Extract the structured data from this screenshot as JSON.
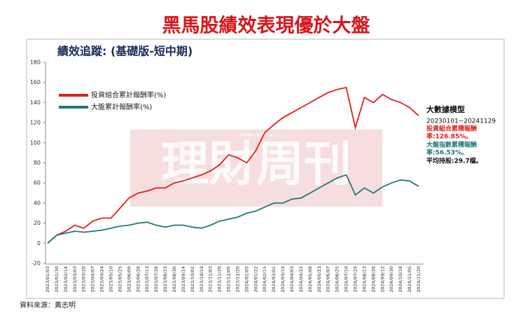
{
  "chart_data": {
    "type": "line",
    "title": "黑馬股績效表現優於大盤",
    "subtitle": "績效追蹤: (基礎版-短中期)",
    "watermark": "理財周刊",
    "watermark_sub": "MONEY WEEKLY",
    "categories": [
      "2023/01/03",
      "2023/01/30",
      "2023/02/14",
      "2023/03/03",
      "2023/03/20",
      "2023/04/07",
      "2023/04/24",
      "2023/05/10",
      "2023/05/25",
      "2023/06/09",
      "2023/06/28",
      "2023/07/13",
      "2023/07/28",
      "2023/08/15",
      "2023/08/30",
      "2023/09/14",
      "2023/10/02",
      "2023/10/19",
      "2023/11/03",
      "2023/11/20",
      "2023/12/05",
      "2023/12/20",
      "2024/01/05",
      "2024/01/22",
      "2024/02/15",
      "2024/03/01",
      "2024/03/19",
      "2024/04/03",
      "2024/04/22",
      "2024/05/08",
      "2024/05/23",
      "2024/06/07",
      "2024/06/25",
      "2024/07/10",
      "2024/07/29",
      "2024/08/13",
      "2024/08/28",
      "2024/09/12",
      "2024/09/30",
      "2024/10/18",
      "2024/11/05",
      "2024/11/20"
    ],
    "series": [
      {
        "name": "投資組合累計報酬率(%)",
        "color": "#e0201c",
        "values": [
          0,
          8,
          12,
          18,
          15,
          22,
          25,
          25,
          35,
          45,
          50,
          52,
          55,
          55,
          60,
          62,
          65,
          68,
          72,
          78,
          88,
          85,
          80,
          92,
          110,
          118,
          125,
          130,
          135,
          140,
          145,
          150,
          153,
          155,
          115,
          145,
          140,
          148,
          143,
          140,
          135,
          126.85
        ]
      },
      {
        "name": "大盤累計報酬率(%)",
        "color": "#1f7a78",
        "values": [
          0,
          8,
          10,
          12,
          11,
          12,
          13,
          15,
          17,
          18,
          20,
          21,
          18,
          16,
          18,
          18,
          16,
          15,
          18,
          22,
          24,
          26,
          30,
          32,
          36,
          40,
          40,
          44,
          45,
          50,
          55,
          60,
          65,
          68,
          48,
          55,
          50,
          56,
          60,
          63,
          62,
          56.53
        ]
      }
    ],
    "ylim": [
      -20,
      180
    ],
    "yticks": [
      -20,
      0,
      20,
      40,
      60,
      80,
      100,
      120,
      140,
      160,
      180
    ],
    "grid": false,
    "side_notes": [
      "大數據模型",
      "20230101~20241129",
      "投資組合累積報酬",
      "率:126.85%。",
      "大盤指數累積報酬",
      "率:56.53%。",
      "平均持股:29.7檔。"
    ],
    "source": "資料來源：黃志明"
  }
}
